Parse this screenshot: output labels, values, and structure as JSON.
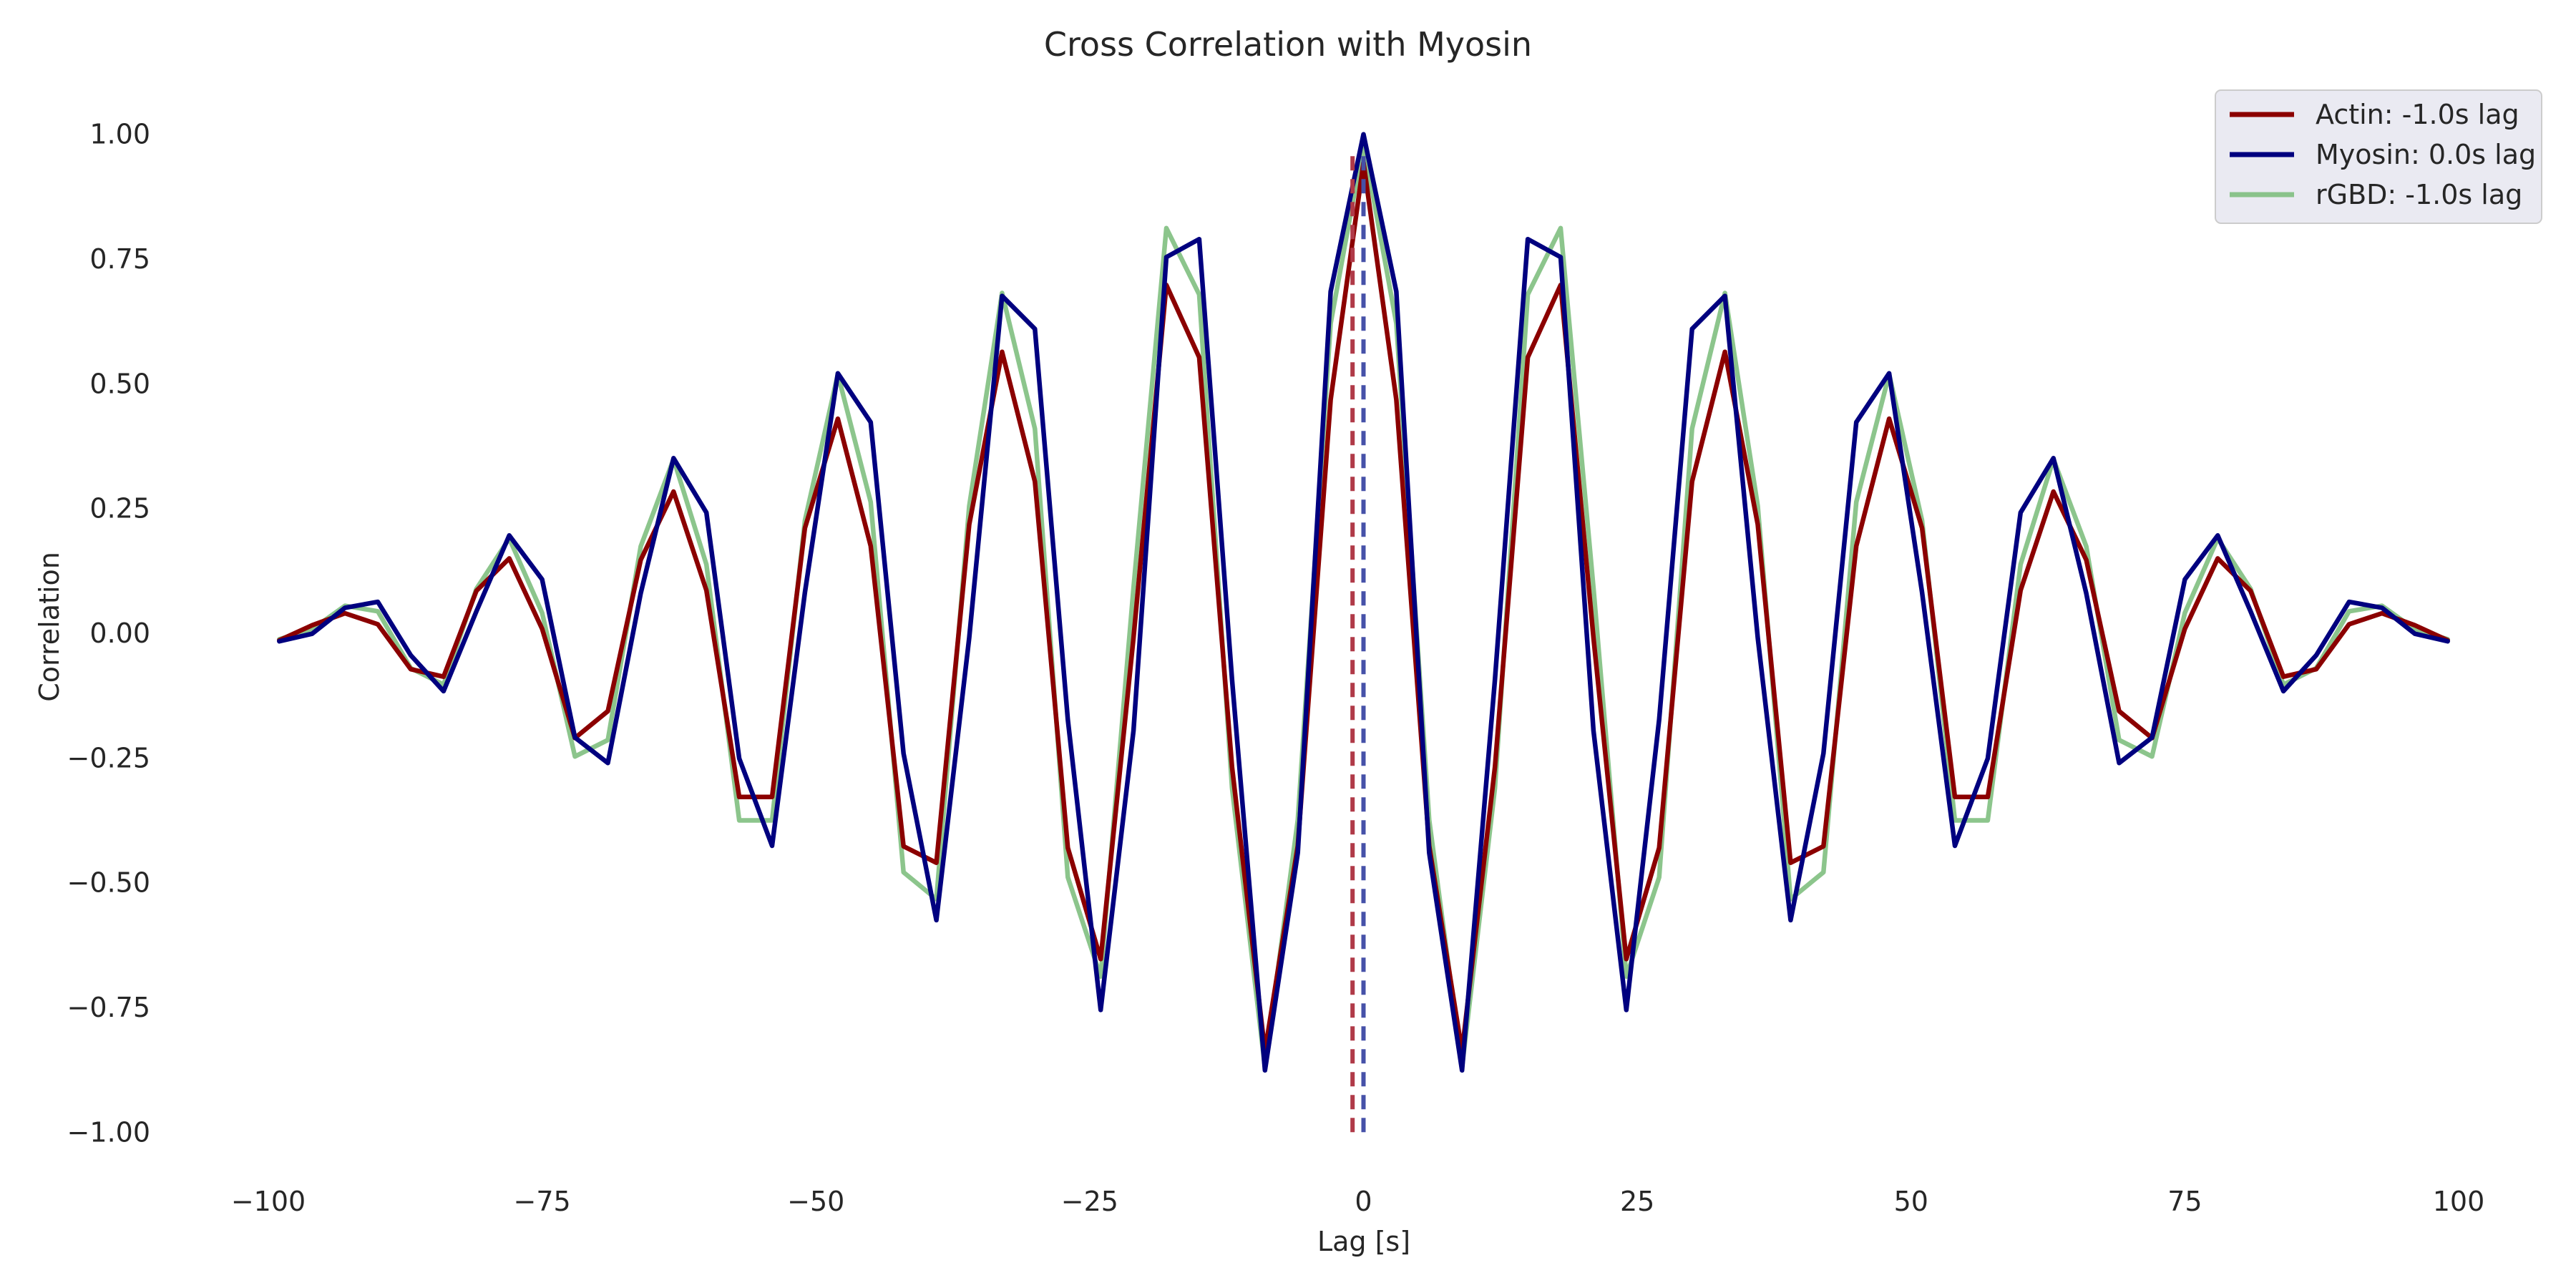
{
  "chart_data": {
    "type": "line",
    "title": "Cross Correlation with Myosin",
    "xlabel": "Lag [s]",
    "ylabel": "Correlation",
    "xlim": [
      -100,
      100
    ],
    "ylim": [
      -1.1,
      1.1
    ],
    "x_ticks": [
      -100,
      -75,
      -50,
      -25,
      0,
      25,
      50,
      75,
      100
    ],
    "x_tick_labels": [
      "−100",
      "−75",
      "−50",
      "−25",
      "0",
      "25",
      "50",
      "75",
      "100"
    ],
    "y_ticks": [
      1.0,
      0.75,
      0.5,
      0.25,
      0.0,
      -0.25,
      -0.5,
      -0.75,
      -1.0
    ],
    "y_tick_labels": [
      "1.00",
      "0.75",
      "0.50",
      "0.25",
      "0.00",
      "−0.25",
      "−0.50",
      "−0.75",
      "−1.00"
    ],
    "grid": false,
    "legend_position": "top-right",
    "x": [
      -99,
      -96,
      -93,
      -90,
      -87,
      -84,
      -81,
      -78,
      -75,
      -72,
      -69,
      -66,
      -63,
      -60,
      -57,
      -54,
      -51,
      -48,
      -45,
      -42,
      -39,
      -36,
      -33,
      -30,
      -27,
      -24,
      -21,
      -18,
      -15,
      -12,
      -9,
      -6,
      -3,
      0,
      3,
      6,
      9,
      12,
      15,
      18,
      21,
      24,
      27,
      30,
      33,
      36,
      39,
      42,
      45,
      48,
      51,
      54,
      57,
      60,
      63,
      66,
      69,
      72,
      75,
      78,
      81,
      84,
      87,
      90,
      93,
      96,
      99
    ],
    "series": [
      {
        "name": "Actin: -1.0s lag",
        "color": "#8b0000",
        "opacity": 1.0,
        "values": [
          -0.014,
          0.016,
          0.04,
          0.018,
          -0.072,
          -0.087,
          0.085,
          0.15,
          0.009,
          -0.21,
          -0.156,
          0.147,
          0.284,
          0.086,
          -0.328,
          -0.328,
          0.211,
          0.43,
          0.175,
          -0.427,
          -0.46,
          0.218,
          0.564,
          0.304,
          -0.43,
          -0.653,
          -0.009,
          0.698,
          0.553,
          -0.268,
          -0.838,
          -0.426,
          0.468,
          0.944,
          0.468,
          -0.426,
          -0.838,
          -0.268,
          0.553,
          0.698,
          -0.009,
          -0.653,
          -0.43,
          0.304,
          0.564,
          0.218,
          -0.46,
          -0.427,
          0.175,
          0.43,
          0.211,
          -0.328,
          -0.328,
          0.086,
          0.284,
          0.147,
          -0.156,
          -0.21,
          0.009,
          0.15,
          0.085,
          -0.087,
          -0.072,
          0.018,
          0.04,
          0.016,
          -0.014
        ],
        "peak_lag": -1.0
      },
      {
        "name": "Myosin: 0.0s lag",
        "color": "#00007f",
        "opacity": 1.0,
        "values": [
          -0.016,
          -0.001,
          0.051,
          0.063,
          -0.044,
          -0.116,
          0.044,
          0.196,
          0.108,
          -0.209,
          -0.26,
          0.08,
          0.351,
          0.242,
          -0.251,
          -0.426,
          0.082,
          0.521,
          0.423,
          -0.241,
          -0.575,
          -0.009,
          0.676,
          0.61,
          -0.173,
          -0.755,
          -0.195,
          0.754,
          0.79,
          -0.093,
          -0.876,
          -0.44,
          0.685,
          1.0,
          0.685,
          -0.44,
          -0.876,
          -0.093,
          0.79,
          0.754,
          -0.195,
          -0.755,
          -0.173,
          0.61,
          0.676,
          -0.009,
          -0.575,
          -0.241,
          0.423,
          0.521,
          0.082,
          -0.426,
          -0.251,
          0.242,
          0.351,
          0.08,
          -0.26,
          -0.209,
          0.108,
          0.196,
          0.044,
          -0.116,
          -0.044,
          0.063,
          0.051,
          -0.001,
          -0.016
        ],
        "peak_lag": 0.0
      },
      {
        "name": "rGBD: -1.0s lag",
        "color": "#7fbf7f",
        "opacity": 0.9,
        "values": [
          -0.012,
          0.008,
          0.055,
          0.044,
          -0.07,
          -0.103,
          0.089,
          0.19,
          0.041,
          -0.247,
          -0.214,
          0.174,
          0.349,
          0.138,
          -0.375,
          -0.375,
          0.226,
          0.519,
          0.263,
          -0.479,
          -0.533,
          0.255,
          0.682,
          0.41,
          -0.489,
          -0.688,
          0.091,
          0.812,
          0.679,
          -0.31,
          -0.87,
          -0.374,
          0.621,
          0.982,
          0.621,
          -0.374,
          -0.87,
          -0.31,
          0.679,
          0.812,
          0.091,
          -0.688,
          -0.489,
          0.41,
          0.682,
          0.255,
          -0.533,
          -0.479,
          0.263,
          0.519,
          0.226,
          -0.375,
          -0.375,
          0.138,
          0.349,
          0.174,
          -0.214,
          -0.247,
          0.041,
          0.19,
          0.089,
          -0.103,
          -0.07,
          0.044,
          0.055,
          0.008,
          -0.012
        ],
        "peak_lag": -1.0
      }
    ],
    "markers": [
      {
        "x": -1.0,
        "y_from": -1.0,
        "y_to": 0.97,
        "color": "#b03a48",
        "style": "dashed"
      },
      {
        "x": 0.0,
        "y_from": -1.0,
        "y_to": 0.97,
        "color": "#4651a8",
        "style": "dashed"
      }
    ]
  }
}
